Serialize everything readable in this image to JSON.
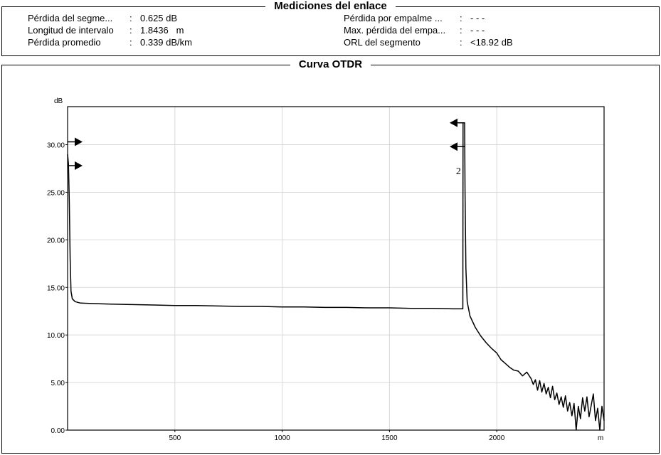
{
  "measurements": {
    "title": "Mediciones del enlace",
    "left": [
      {
        "label": "Pérdida del segme...",
        "sep": ":",
        "value": "0.625 dB"
      },
      {
        "label": "Longitud de intervalo",
        "sep": ":",
        "value": "1.8436   m"
      },
      {
        "label": "Pérdida promedio",
        "sep": ":",
        "value": "0.339 dB/km"
      }
    ],
    "right": [
      {
        "label": "Pérdida por empalme ...",
        "sep": ":",
        "value": "- - -"
      },
      {
        "label": "Max. pérdida del empa...",
        "sep": ":",
        "value": "- - -"
      },
      {
        "label": "ORL del segmento",
        "sep": ":",
        "value": "<18.92 dB"
      }
    ]
  },
  "curve_panel": {
    "title": "Curva OTDR"
  },
  "chart_data": {
    "type": "line",
    "title": "Curva OTDR",
    "ylabel": "dB",
    "xlabel": "m",
    "xlim": [
      0,
      2500
    ],
    "ylim": [
      0,
      34
    ],
    "x_ticks": [
      500,
      1000,
      1500,
      2000
    ],
    "y_ticks": [
      0,
      5,
      10,
      15,
      20,
      25,
      30
    ],
    "y_tick_labels": [
      "0.00",
      "5.00",
      "10.00",
      "15.00",
      "20.00",
      "25.00",
      "30.00"
    ],
    "x_tick_labels": [
      "500",
      "1000",
      "1500",
      "2000"
    ],
    "x_unit_label": "m",
    "grid": true,
    "series": [
      {
        "points": [
          [
            0,
            29
          ],
          [
            4,
            28
          ],
          [
            8,
            24
          ],
          [
            12,
            18
          ],
          [
            16,
            14.6
          ],
          [
            22,
            13.8
          ],
          [
            35,
            13.5
          ],
          [
            60,
            13.35
          ],
          [
            120,
            13.3
          ],
          [
            200,
            13.25
          ],
          [
            300,
            13.2
          ],
          [
            400,
            13.15
          ],
          [
            500,
            13.1
          ],
          [
            600,
            13.1
          ],
          [
            700,
            13.05
          ],
          [
            800,
            13.0
          ],
          [
            900,
            13.0
          ],
          [
            1000,
            12.95
          ],
          [
            1100,
            12.95
          ],
          [
            1200,
            12.9
          ],
          [
            1300,
            12.9
          ],
          [
            1400,
            12.85
          ],
          [
            1500,
            12.85
          ],
          [
            1600,
            12.8
          ],
          [
            1700,
            12.8
          ],
          [
            1800,
            12.75
          ],
          [
            1842,
            12.75
          ],
          [
            1843,
            32.3
          ],
          [
            1850,
            32.3
          ],
          [
            1852,
            25
          ],
          [
            1856,
            17
          ],
          [
            1862,
            13.5
          ],
          [
            1875,
            12.0
          ],
          [
            1900,
            10.8
          ],
          [
            1925,
            9.9
          ],
          [
            1950,
            9.2
          ],
          [
            1975,
            8.6
          ],
          [
            2000,
            8.1
          ],
          [
            2020,
            7.4
          ],
          [
            2040,
            7.0
          ],
          [
            2060,
            6.6
          ],
          [
            2080,
            6.3
          ],
          [
            2100,
            6.2
          ],
          [
            2120,
            5.7
          ],
          [
            2140,
            6.1
          ],
          [
            2160,
            5.4
          ],
          [
            2170,
            4.8
          ],
          [
            2180,
            5.3
          ],
          [
            2190,
            4.2
          ],
          [
            2200,
            5.2
          ],
          [
            2210,
            4.0
          ],
          [
            2220,
            4.9
          ],
          [
            2230,
            3.8
          ],
          [
            2240,
            4.5
          ],
          [
            2250,
            3.4
          ],
          [
            2260,
            4.6
          ],
          [
            2270,
            3.2
          ],
          [
            2280,
            3.9
          ],
          [
            2290,
            2.7
          ],
          [
            2300,
            3.5
          ],
          [
            2310,
            2.4
          ],
          [
            2320,
            3.6
          ],
          [
            2330,
            2.0
          ],
          [
            2340,
            2.9
          ],
          [
            2350,
            1.5
          ],
          [
            2360,
            2.8
          ],
          [
            2370,
            0.0
          ],
          [
            2380,
            2.5
          ],
          [
            2390,
            1.2
          ],
          [
            2400,
            3.4
          ],
          [
            2410,
            2.0
          ],
          [
            2420,
            3.5
          ],
          [
            2430,
            1.4
          ],
          [
            2440,
            2.6
          ],
          [
            2450,
            3.8
          ],
          [
            2460,
            1.0
          ],
          [
            2470,
            2.3
          ],
          [
            2480,
            0.0
          ],
          [
            2490,
            2.5
          ],
          [
            2500,
            1.0
          ]
        ]
      }
    ],
    "markers": [
      {
        "type": "arrow-right",
        "x": 0,
        "y": 30.3
      },
      {
        "type": "arrow-right",
        "x": 0,
        "y": 27.8
      },
      {
        "type": "arrow-left",
        "x": 1850,
        "y": 32.3
      },
      {
        "type": "arrow-left",
        "x": 1850,
        "y": 29.8
      }
    ],
    "annotations": [
      {
        "text": "2",
        "x": 1830,
        "y": 27.5
      }
    ]
  }
}
